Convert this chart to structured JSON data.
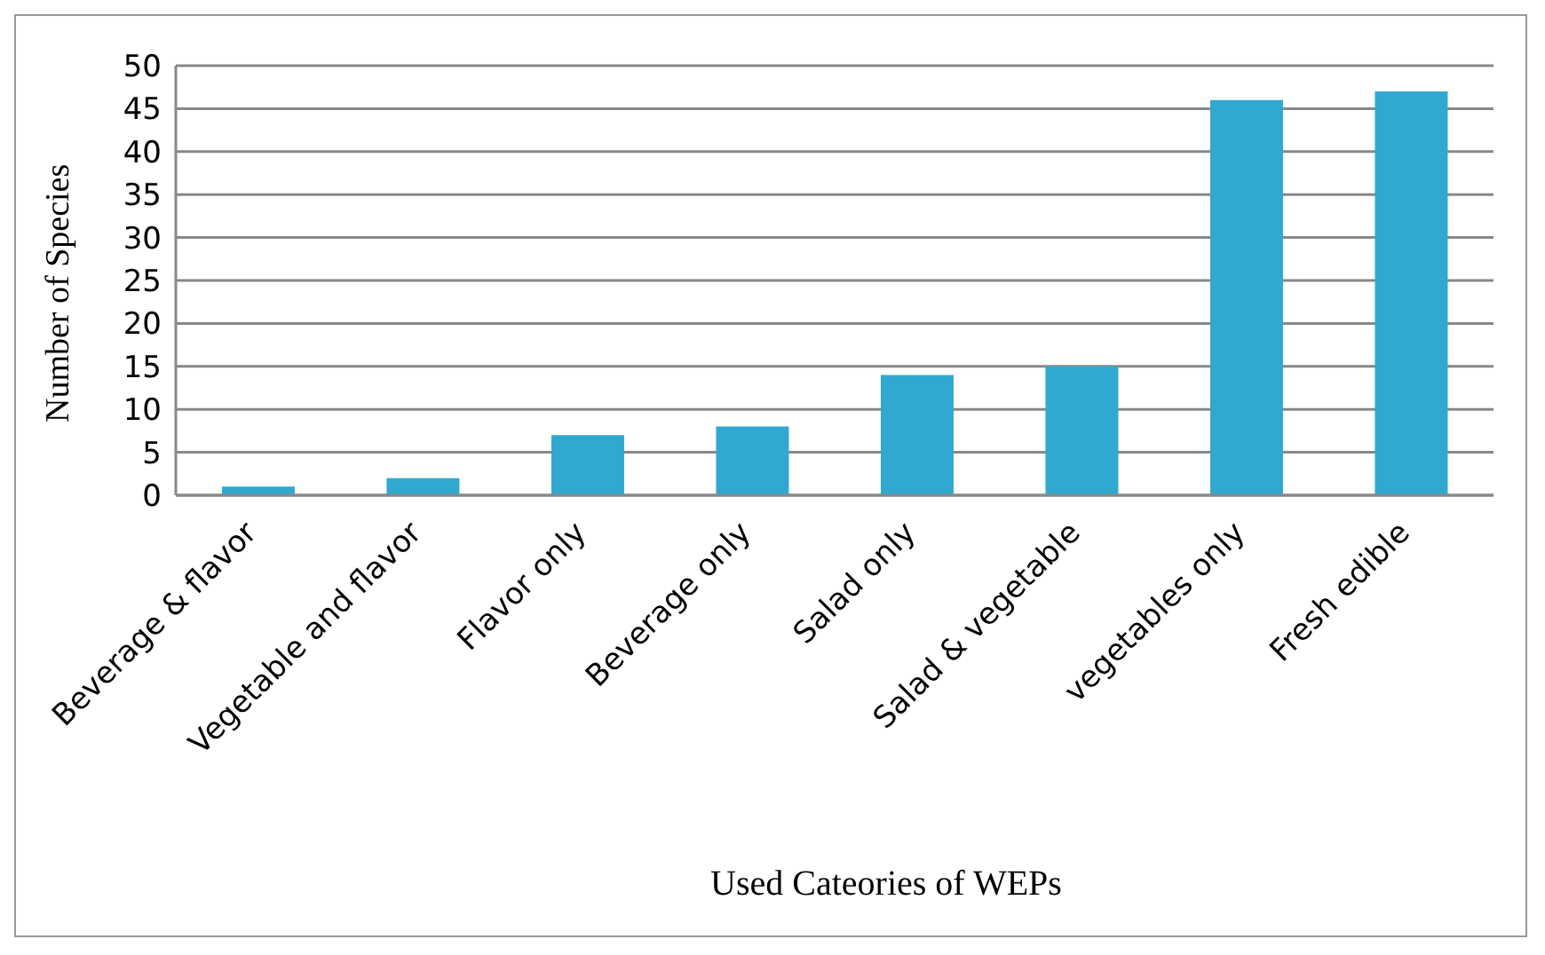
{
  "chart_data": {
    "type": "bar",
    "xlabel": "Used Cateories of WEPs",
    "ylabel": "Number of Species",
    "categories": [
      "Beverage & flavor",
      "Vegetable and flavor",
      "Flavor only",
      "Beverage only",
      "Salad only",
      "Salad & vegetable",
      "vegetables only",
      "Fresh edible"
    ],
    "values": [
      1,
      2,
      7,
      8,
      14,
      15,
      46,
      47
    ],
    "color": "#31a8cf",
    "ylim": [
      0,
      50
    ],
    "yticks": [
      0,
      5,
      10,
      15,
      20,
      25,
      30,
      35,
      40,
      45,
      50
    ],
    "grid": "y"
  }
}
